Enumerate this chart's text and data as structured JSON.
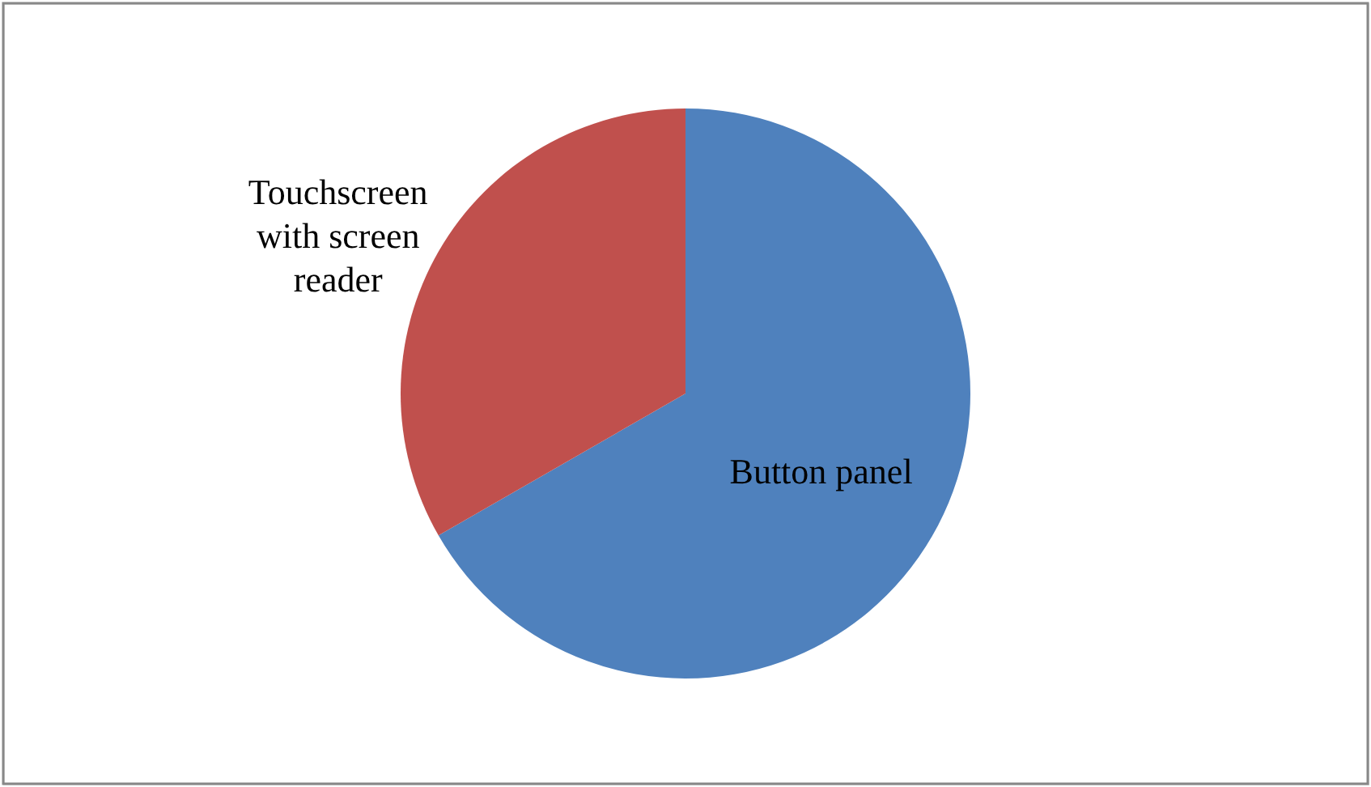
{
  "chart_data": {
    "type": "pie",
    "categories": [
      "Button panel",
      "Touchscreen with screen reader"
    ],
    "values": [
      66.7,
      33.3
    ],
    "colors": [
      "#4f81bd",
      "#c0504d"
    ]
  }
}
